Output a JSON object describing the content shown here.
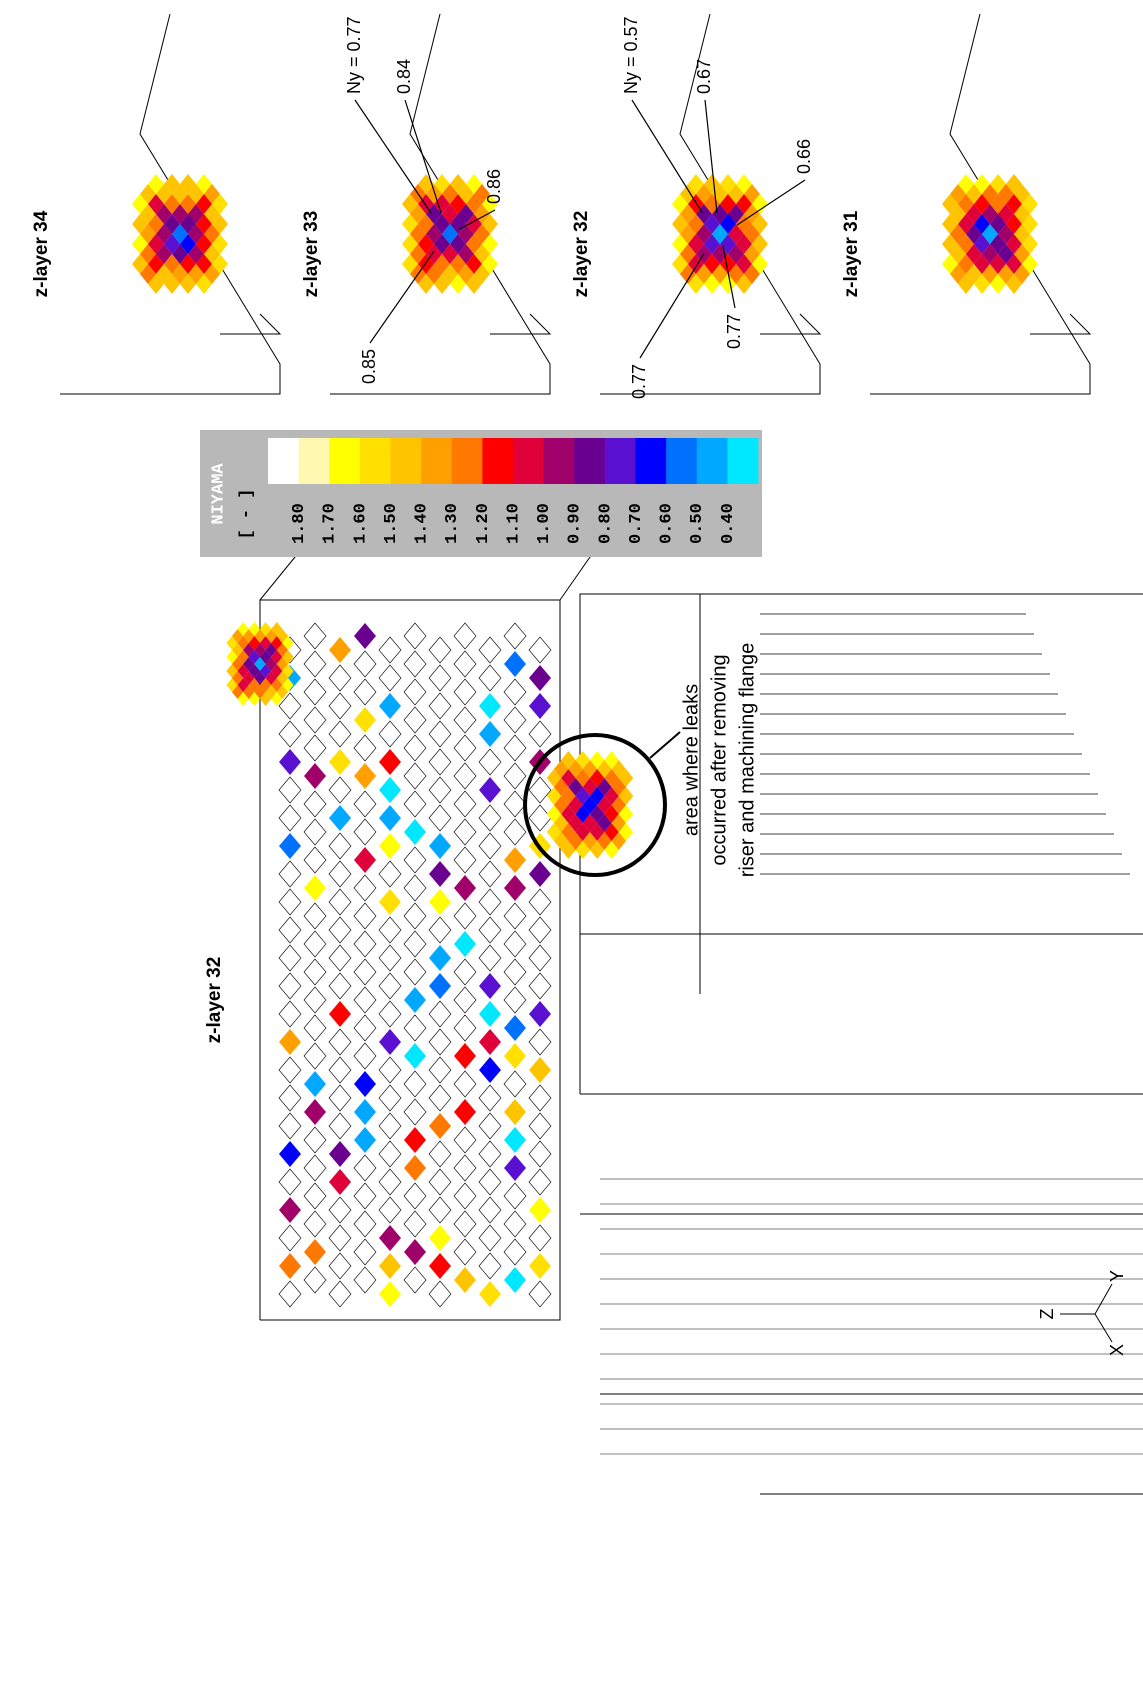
{
  "main": {
    "title": "z-layer 32",
    "annotation": [
      "area where leaks",
      "occurred after removing",
      "riser and machining flange"
    ],
    "axes": [
      "Z",
      "Y",
      "X"
    ]
  },
  "legend": {
    "title": "NIYAMA",
    "unit": "[ - ]",
    "labels": [
      "1.80",
      "1.70",
      "1.60",
      "1.50",
      "1.40",
      "1.30",
      "1.20",
      "1.10",
      "1.00",
      "0.90",
      "0.80",
      "0.70",
      "0.60",
      "0.50",
      "0.40"
    ],
    "colors": [
      "#ffffff",
      "#fff8b0",
      "#ffff00",
      "#ffe000",
      "#ffc400",
      "#ffa000",
      "#ff7800",
      "#ff0000",
      "#e0003a",
      "#a0006a",
      "#6a0090",
      "#5a10d0",
      "#0000ff",
      "#0070ff",
      "#00a8ff",
      "#00e8ff"
    ]
  },
  "panels": [
    {
      "title": "z-layer 34",
      "labels": []
    },
    {
      "title": "z-layer 33",
      "labels": [
        "Ny = 0.77",
        "0.84",
        "0.86",
        "0.85"
      ]
    },
    {
      "title": "z-layer 32",
      "labels": [
        "Ny = 0.57",
        "0.67",
        "0.66",
        "0.77",
        "0.77"
      ]
    },
    {
      "title": "z-layer 31",
      "labels": []
    }
  ]
}
